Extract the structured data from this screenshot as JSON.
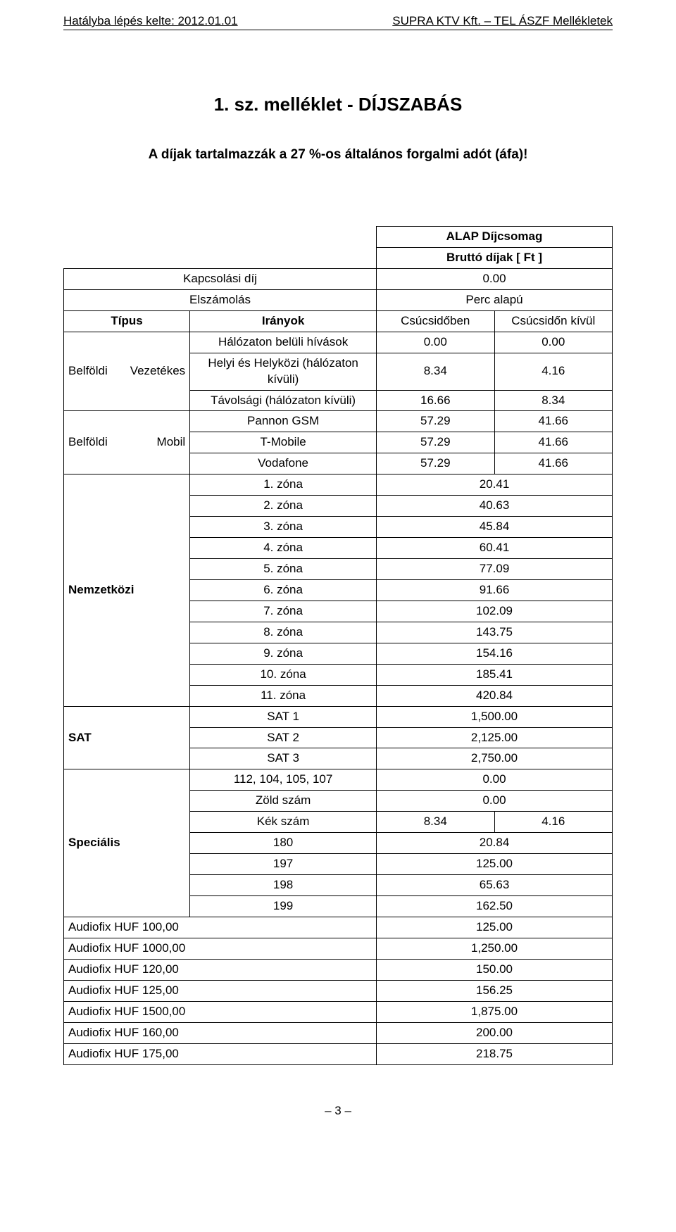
{
  "header": {
    "left": "Hatályba lépés kelte: 2012.01.01",
    "right": "SUPRA KTV Kft. – TEL ÁSZF Mellékletek"
  },
  "title": "1. sz. melléklet - DÍJSZABÁS",
  "subtitle": "A díjak tartalmazzák a 27 %-os általános forgalmi adót (áfa)!",
  "package": {
    "name": "ALAP Díjcsomag",
    "price_label": "Bruttó díjak [ Ft ]"
  },
  "conn": {
    "label": "Kapcsolási díj",
    "value": "0.00"
  },
  "billing": {
    "label": "Elszámolás",
    "value": "Perc alapú"
  },
  "head": {
    "type": "Típus",
    "dir": "Irányok",
    "peak": "Csúcsidőben",
    "offpeak": "Csúcsidőn kívül"
  },
  "vez": {
    "label_a": "Belföldi",
    "label_b": "Vezetékes",
    "r1": {
      "dir": "Hálózaton belüli hívások",
      "v1": "0.00",
      "v2": "0.00"
    },
    "r2": {
      "dir": "Helyi és Helyközi (hálózaton kívüli)",
      "v1": "8.34",
      "v2": "4.16"
    },
    "r3": {
      "dir": "Távolsági (hálózaton kívüli)",
      "v1": "16.66",
      "v2": "8.34"
    }
  },
  "mobil": {
    "label_a": "Belföldi",
    "label_b": "Mobil",
    "r1": {
      "dir": "Pannon GSM",
      "v1": "57.29",
      "v2": "41.66"
    },
    "r2": {
      "dir": "T-Mobile",
      "v1": "57.29",
      "v2": "41.66"
    },
    "r3": {
      "dir": "Vodafone",
      "v1": "57.29",
      "v2": "41.66"
    }
  },
  "intl": {
    "label": "Nemzetközi",
    "rows": [
      {
        "dir": "1. zóna",
        "val": "20.41"
      },
      {
        "dir": "2. zóna",
        "val": "40.63"
      },
      {
        "dir": "3. zóna",
        "val": "45.84"
      },
      {
        "dir": "4. zóna",
        "val": "60.41"
      },
      {
        "dir": "5. zóna",
        "val": "77.09"
      },
      {
        "dir": "6. zóna",
        "val": "91.66"
      },
      {
        "dir": "7. zóna",
        "val": "102.09"
      },
      {
        "dir": "8. zóna",
        "val": "143.75"
      },
      {
        "dir": "9. zóna",
        "val": "154.16"
      },
      {
        "dir": "10. zóna",
        "val": "185.41"
      },
      {
        "dir": "11. zóna",
        "val": "420.84"
      }
    ]
  },
  "sat": {
    "label": "SAT",
    "rows": [
      {
        "dir": "SAT 1",
        "val": "1,500.00"
      },
      {
        "dir": "SAT 2",
        "val": "2,125.00"
      },
      {
        "dir": "SAT 3",
        "val": "2,750.00"
      }
    ]
  },
  "spec": {
    "label": "Speciális",
    "r1": {
      "dir": "112, 104, 105, 107",
      "val": "0.00"
    },
    "r2": {
      "dir": "Zöld szám",
      "val": "0.00"
    },
    "r3": {
      "dir": "Kék szám",
      "v1": "8.34",
      "v2": "4.16"
    },
    "r4": {
      "dir": "180",
      "val": "20.84"
    },
    "r5": {
      "dir": "197",
      "val": "125.00"
    },
    "r6": {
      "dir": "198",
      "val": "65.63"
    },
    "r7": {
      "dir": "199",
      "val": "162.50"
    }
  },
  "audiofix": [
    {
      "label": "Audiofix HUF 100,00",
      "val": "125.00"
    },
    {
      "label": "Audiofix HUF 1000,00",
      "val": "1,250.00"
    },
    {
      "label": "Audiofix HUF 120,00",
      "val": "150.00"
    },
    {
      "label": "Audiofix HUF 125,00",
      "val": "156.25"
    },
    {
      "label": "Audiofix HUF 1500,00",
      "val": "1,875.00"
    },
    {
      "label": "Audiofix HUF 160,00",
      "val": "200.00"
    },
    {
      "label": "Audiofix HUF 175,00",
      "val": "218.75"
    }
  ],
  "page_number": "– 3 –"
}
